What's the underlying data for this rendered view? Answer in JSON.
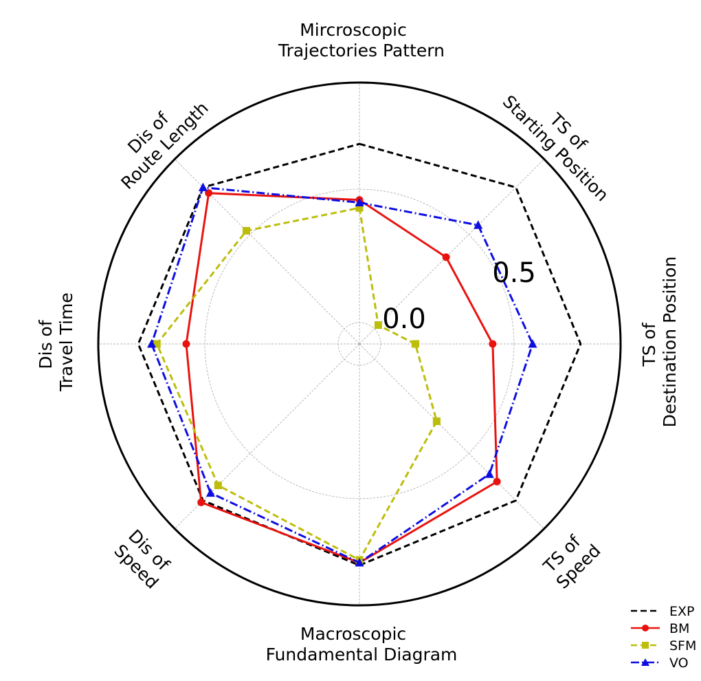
{
  "chart_data": {
    "type": "radar",
    "title": "",
    "axes": [
      {
        "lines": [
          "Mircroscopic",
          "Trajectories Pattern"
        ]
      },
      {
        "lines": [
          "TS of",
          "Starting Position"
        ]
      },
      {
        "lines": [
          "TS of",
          "Destination Position"
        ]
      },
      {
        "lines": [
          "TS of",
          "Speed"
        ]
      },
      {
        "lines": [
          "Macroscopic",
          "Fundamental Diagram"
        ]
      },
      {
        "lines": [
          "Dis of",
          "Speed"
        ]
      },
      {
        "lines": [
          "Dis of",
          "Travel Time"
        ]
      },
      {
        "lines": [
          "Dis of",
          "Route Length"
        ]
      }
    ],
    "radial_ticks": [
      "0.0",
      "0.5"
    ],
    "radial_tick_values": [
      0.0,
      0.5
    ],
    "radial_range": [
      -0.08,
      0.9
    ],
    "grid": true,
    "legend_position": "bottom-right",
    "series": [
      {
        "name": "EXP",
        "color": "#000000",
        "dash": "dashed",
        "marker": "none",
        "values": [
          0.67,
          0.75,
          0.75,
          0.75,
          0.75,
          0.75,
          0.75,
          0.75
        ]
      },
      {
        "name": "BM",
        "color": "#e8130f",
        "dash": "solid",
        "marker": "circle",
        "values": [
          0.46,
          0.38,
          0.42,
          0.65,
          0.74,
          0.76,
          0.57,
          0.72
        ]
      },
      {
        "name": "SFM",
        "color": "#bdbd0c",
        "dash": "dashed",
        "marker": "square",
        "values": [
          0.43,
          0.02,
          0.13,
          0.33,
          0.73,
          0.67,
          0.68,
          0.52
        ]
      },
      {
        "name": "VO",
        "color": "#0d0de0",
        "dash": "dashdot",
        "marker": "triangle",
        "values": [
          0.45,
          0.55,
          0.57,
          0.61,
          0.74,
          0.71,
          0.7,
          0.75
        ]
      }
    ]
  }
}
